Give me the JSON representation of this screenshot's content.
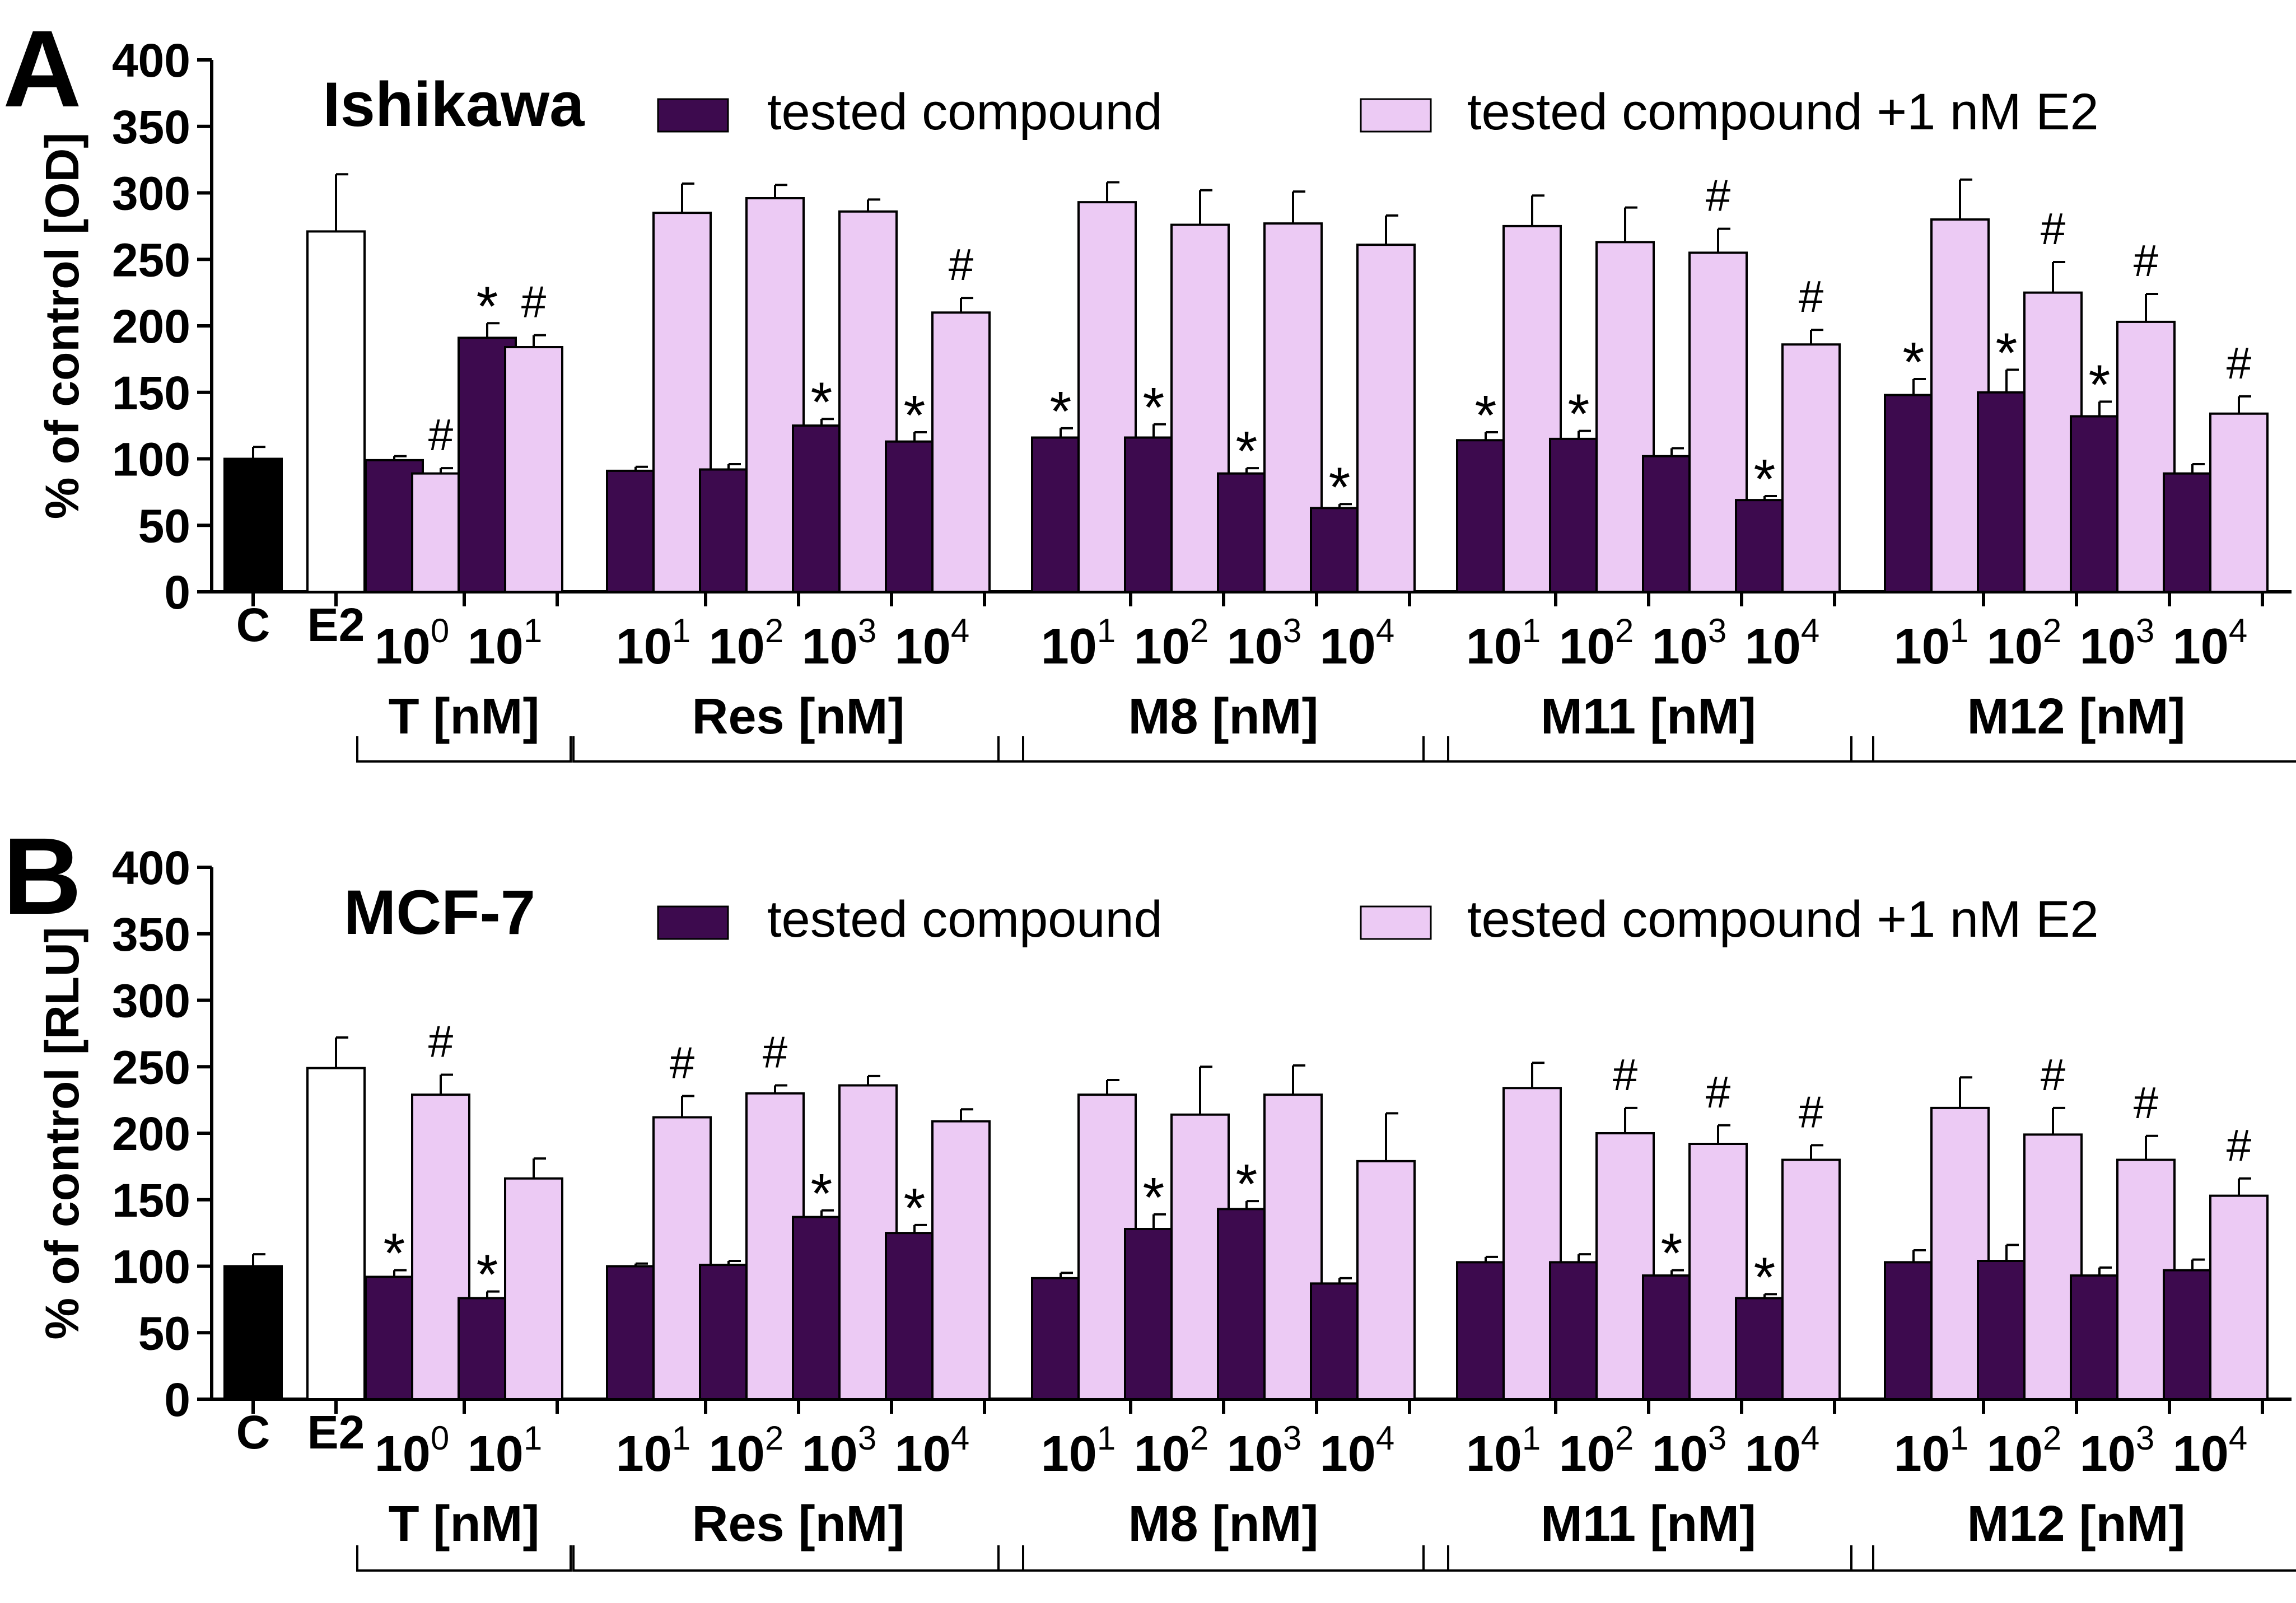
{
  "colors": {
    "control": "#000000",
    "e2": "#ffffff",
    "tested": "#3d0a4e",
    "tested_e2": "#eccaf4",
    "axis": "#000000"
  },
  "legend": {
    "tested_label": "tested compound",
    "tested_e2_label": "tested compound +1 nM E2"
  },
  "chart_data": [
    {
      "type": "bar",
      "panel_letter": "A",
      "title": "Ishikawa",
      "ylabel": "% of control [OD]",
      "ylim": [
        0,
        400
      ],
      "yticks": [
        "0",
        "50",
        "100",
        "150",
        "200",
        "250",
        "300",
        "350",
        "400"
      ],
      "legend_position": "top",
      "references": [
        {
          "label": "C",
          "value": 100,
          "error": 9,
          "color_key": "control"
        },
        {
          "label": "E2",
          "value": 271,
          "error": 43,
          "color_key": "e2"
        }
      ],
      "groups": [
        {
          "name": "T [nM]",
          "concentrations": [
            {
              "base": "10",
              "exp": "0"
            },
            {
              "base": "10",
              "exp": "1"
            }
          ],
          "tested": [
            99,
            191
          ],
          "tested_err": [
            3,
            11
          ],
          "tested_mark": [
            "",
            "*"
          ],
          "tested_e2": [
            89,
            184
          ],
          "tested_e2_err": [
            4,
            9
          ],
          "tested_e2_mark": [
            "#",
            "#"
          ]
        },
        {
          "name": "Res [nM]",
          "concentrations": [
            {
              "base": "10",
              "exp": "1"
            },
            {
              "base": "10",
              "exp": "2"
            },
            {
              "base": "10",
              "exp": "3"
            },
            {
              "base": "10",
              "exp": "4"
            }
          ],
          "tested": [
            91,
            92,
            125,
            113
          ],
          "tested_err": [
            3,
            4,
            5,
            7
          ],
          "tested_mark": [
            "",
            "",
            "*",
            "*"
          ],
          "tested_e2": [
            285,
            296,
            286,
            210
          ],
          "tested_e2_err": [
            22,
            10,
            9,
            11
          ],
          "tested_e2_mark": [
            "",
            "",
            "",
            "#"
          ]
        },
        {
          "name": "M8 [nM]",
          "concentrations": [
            {
              "base": "10",
              "exp": "1"
            },
            {
              "base": "10",
              "exp": "2"
            },
            {
              "base": "10",
              "exp": "3"
            },
            {
              "base": "10",
              "exp": "4"
            }
          ],
          "tested": [
            116,
            116,
            89,
            63
          ],
          "tested_err": [
            7,
            10,
            4,
            3
          ],
          "tested_mark": [
            "*",
            "*",
            "*",
            "*"
          ],
          "tested_e2": [
            293,
            276,
            277,
            261
          ],
          "tested_e2_err": [
            15,
            26,
            24,
            22
          ],
          "tested_e2_mark": [
            "",
            "",
            "",
            ""
          ]
        },
        {
          "name": "M11 [nM]",
          "concentrations": [
            {
              "base": "10",
              "exp": "1"
            },
            {
              "base": "10",
              "exp": "2"
            },
            {
              "base": "10",
              "exp": "3"
            },
            {
              "base": "10",
              "exp": "4"
            }
          ],
          "tested": [
            114,
            115,
            102,
            69
          ],
          "tested_err": [
            6,
            6,
            6,
            3
          ],
          "tested_mark": [
            "*",
            "*",
            "",
            "*"
          ],
          "tested_e2": [
            275,
            263,
            255,
            186
          ],
          "tested_e2_err": [
            23,
            26,
            18,
            11
          ],
          "tested_e2_mark": [
            "",
            "",
            "#",
            "#"
          ]
        },
        {
          "name": "M12 [nM]",
          "concentrations": [
            {
              "base": "10",
              "exp": "1"
            },
            {
              "base": "10",
              "exp": "2"
            },
            {
              "base": "10",
              "exp": "3"
            },
            {
              "base": "10",
              "exp": "4"
            }
          ],
          "tested": [
            148,
            150,
            132,
            89
          ],
          "tested_err": [
            12,
            17,
            11,
            7
          ],
          "tested_mark": [
            "*",
            "*",
            "*",
            ""
          ],
          "tested_e2": [
            280,
            225,
            203,
            134
          ],
          "tested_e2_err": [
            30,
            23,
            21,
            13
          ],
          "tested_e2_mark": [
            "",
            "#",
            "#",
            "#"
          ]
        }
      ]
    },
    {
      "type": "bar",
      "panel_letter": "B",
      "title": "MCF-7",
      "ylabel": "% of control [RLU]",
      "ylim": [
        0,
        400
      ],
      "yticks": [
        "0",
        "50",
        "100",
        "150",
        "200",
        "250",
        "300",
        "350",
        "400"
      ],
      "legend_position": "top",
      "references": [
        {
          "label": "C",
          "value": 100,
          "error": 9,
          "color_key": "control"
        },
        {
          "label": "E2",
          "value": 249,
          "error": 23,
          "color_key": "e2"
        }
      ],
      "groups": [
        {
          "name": "T [nM]",
          "concentrations": [
            {
              "base": "10",
              "exp": "0"
            },
            {
              "base": "10",
              "exp": "1"
            }
          ],
          "tested": [
            92,
            76
          ],
          "tested_err": [
            5,
            5
          ],
          "tested_mark": [
            "*",
            "*"
          ],
          "tested_e2": [
            229,
            166
          ],
          "tested_e2_err": [
            15,
            15
          ],
          "tested_e2_mark": [
            "#",
            ""
          ]
        },
        {
          "name": "Res [nM]",
          "concentrations": [
            {
              "base": "10",
              "exp": "1"
            },
            {
              "base": "10",
              "exp": "2"
            },
            {
              "base": "10",
              "exp": "3"
            },
            {
              "base": "10",
              "exp": "4"
            }
          ],
          "tested": [
            100,
            101,
            137,
            125
          ],
          "tested_err": [
            2,
            3,
            5,
            6
          ],
          "tested_mark": [
            "",
            "",
            "*",
            "*"
          ],
          "tested_e2": [
            212,
            230,
            236,
            209
          ],
          "tested_e2_err": [
            16,
            6,
            7,
            9
          ],
          "tested_e2_mark": [
            "#",
            "#",
            "",
            ""
          ]
        },
        {
          "name": "M8 [nM]",
          "concentrations": [
            {
              "base": "10",
              "exp": "1"
            },
            {
              "base": "10",
              "exp": "2"
            },
            {
              "base": "10",
              "exp": "3"
            },
            {
              "base": "10",
              "exp": "4"
            }
          ],
          "tested": [
            91,
            128,
            143,
            87
          ],
          "tested_err": [
            4,
            11,
            6,
            4
          ],
          "tested_mark": [
            "",
            "*",
            "*",
            ""
          ],
          "tested_e2": [
            229,
            214,
            229,
            179
          ],
          "tested_e2_err": [
            11,
            36,
            22,
            36
          ],
          "tested_e2_mark": [
            "",
            "",
            "",
            ""
          ]
        },
        {
          "name": "M11 [nM]",
          "concentrations": [
            {
              "base": "10",
              "exp": "1"
            },
            {
              "base": "10",
              "exp": "2"
            },
            {
              "base": "10",
              "exp": "3"
            },
            {
              "base": "10",
              "exp": "4"
            }
          ],
          "tested": [
            103,
            103,
            93,
            76
          ],
          "tested_err": [
            4,
            6,
            4,
            3
          ],
          "tested_mark": [
            "",
            "",
            "*",
            "*"
          ],
          "tested_e2": [
            234,
            200,
            192,
            180
          ],
          "tested_e2_err": [
            19,
            19,
            14,
            11
          ],
          "tested_e2_mark": [
            "",
            "#",
            "#",
            "#"
          ]
        },
        {
          "name": "M12 [nM]",
          "concentrations": [
            {
              "base": "10",
              "exp": "1"
            },
            {
              "base": "10",
              "exp": "2"
            },
            {
              "base": "10",
              "exp": "3"
            },
            {
              "base": "10",
              "exp": "4"
            }
          ],
          "tested": [
            103,
            104,
            93,
            97
          ],
          "tested_err": [
            9,
            12,
            6,
            8
          ],
          "tested_mark": [
            "",
            "",
            "",
            ""
          ],
          "tested_e2": [
            219,
            199,
            180,
            153
          ],
          "tested_e2_err": [
            23,
            20,
            18,
            13
          ],
          "tested_e2_mark": [
            "",
            "#",
            "#",
            "#"
          ]
        }
      ]
    }
  ]
}
